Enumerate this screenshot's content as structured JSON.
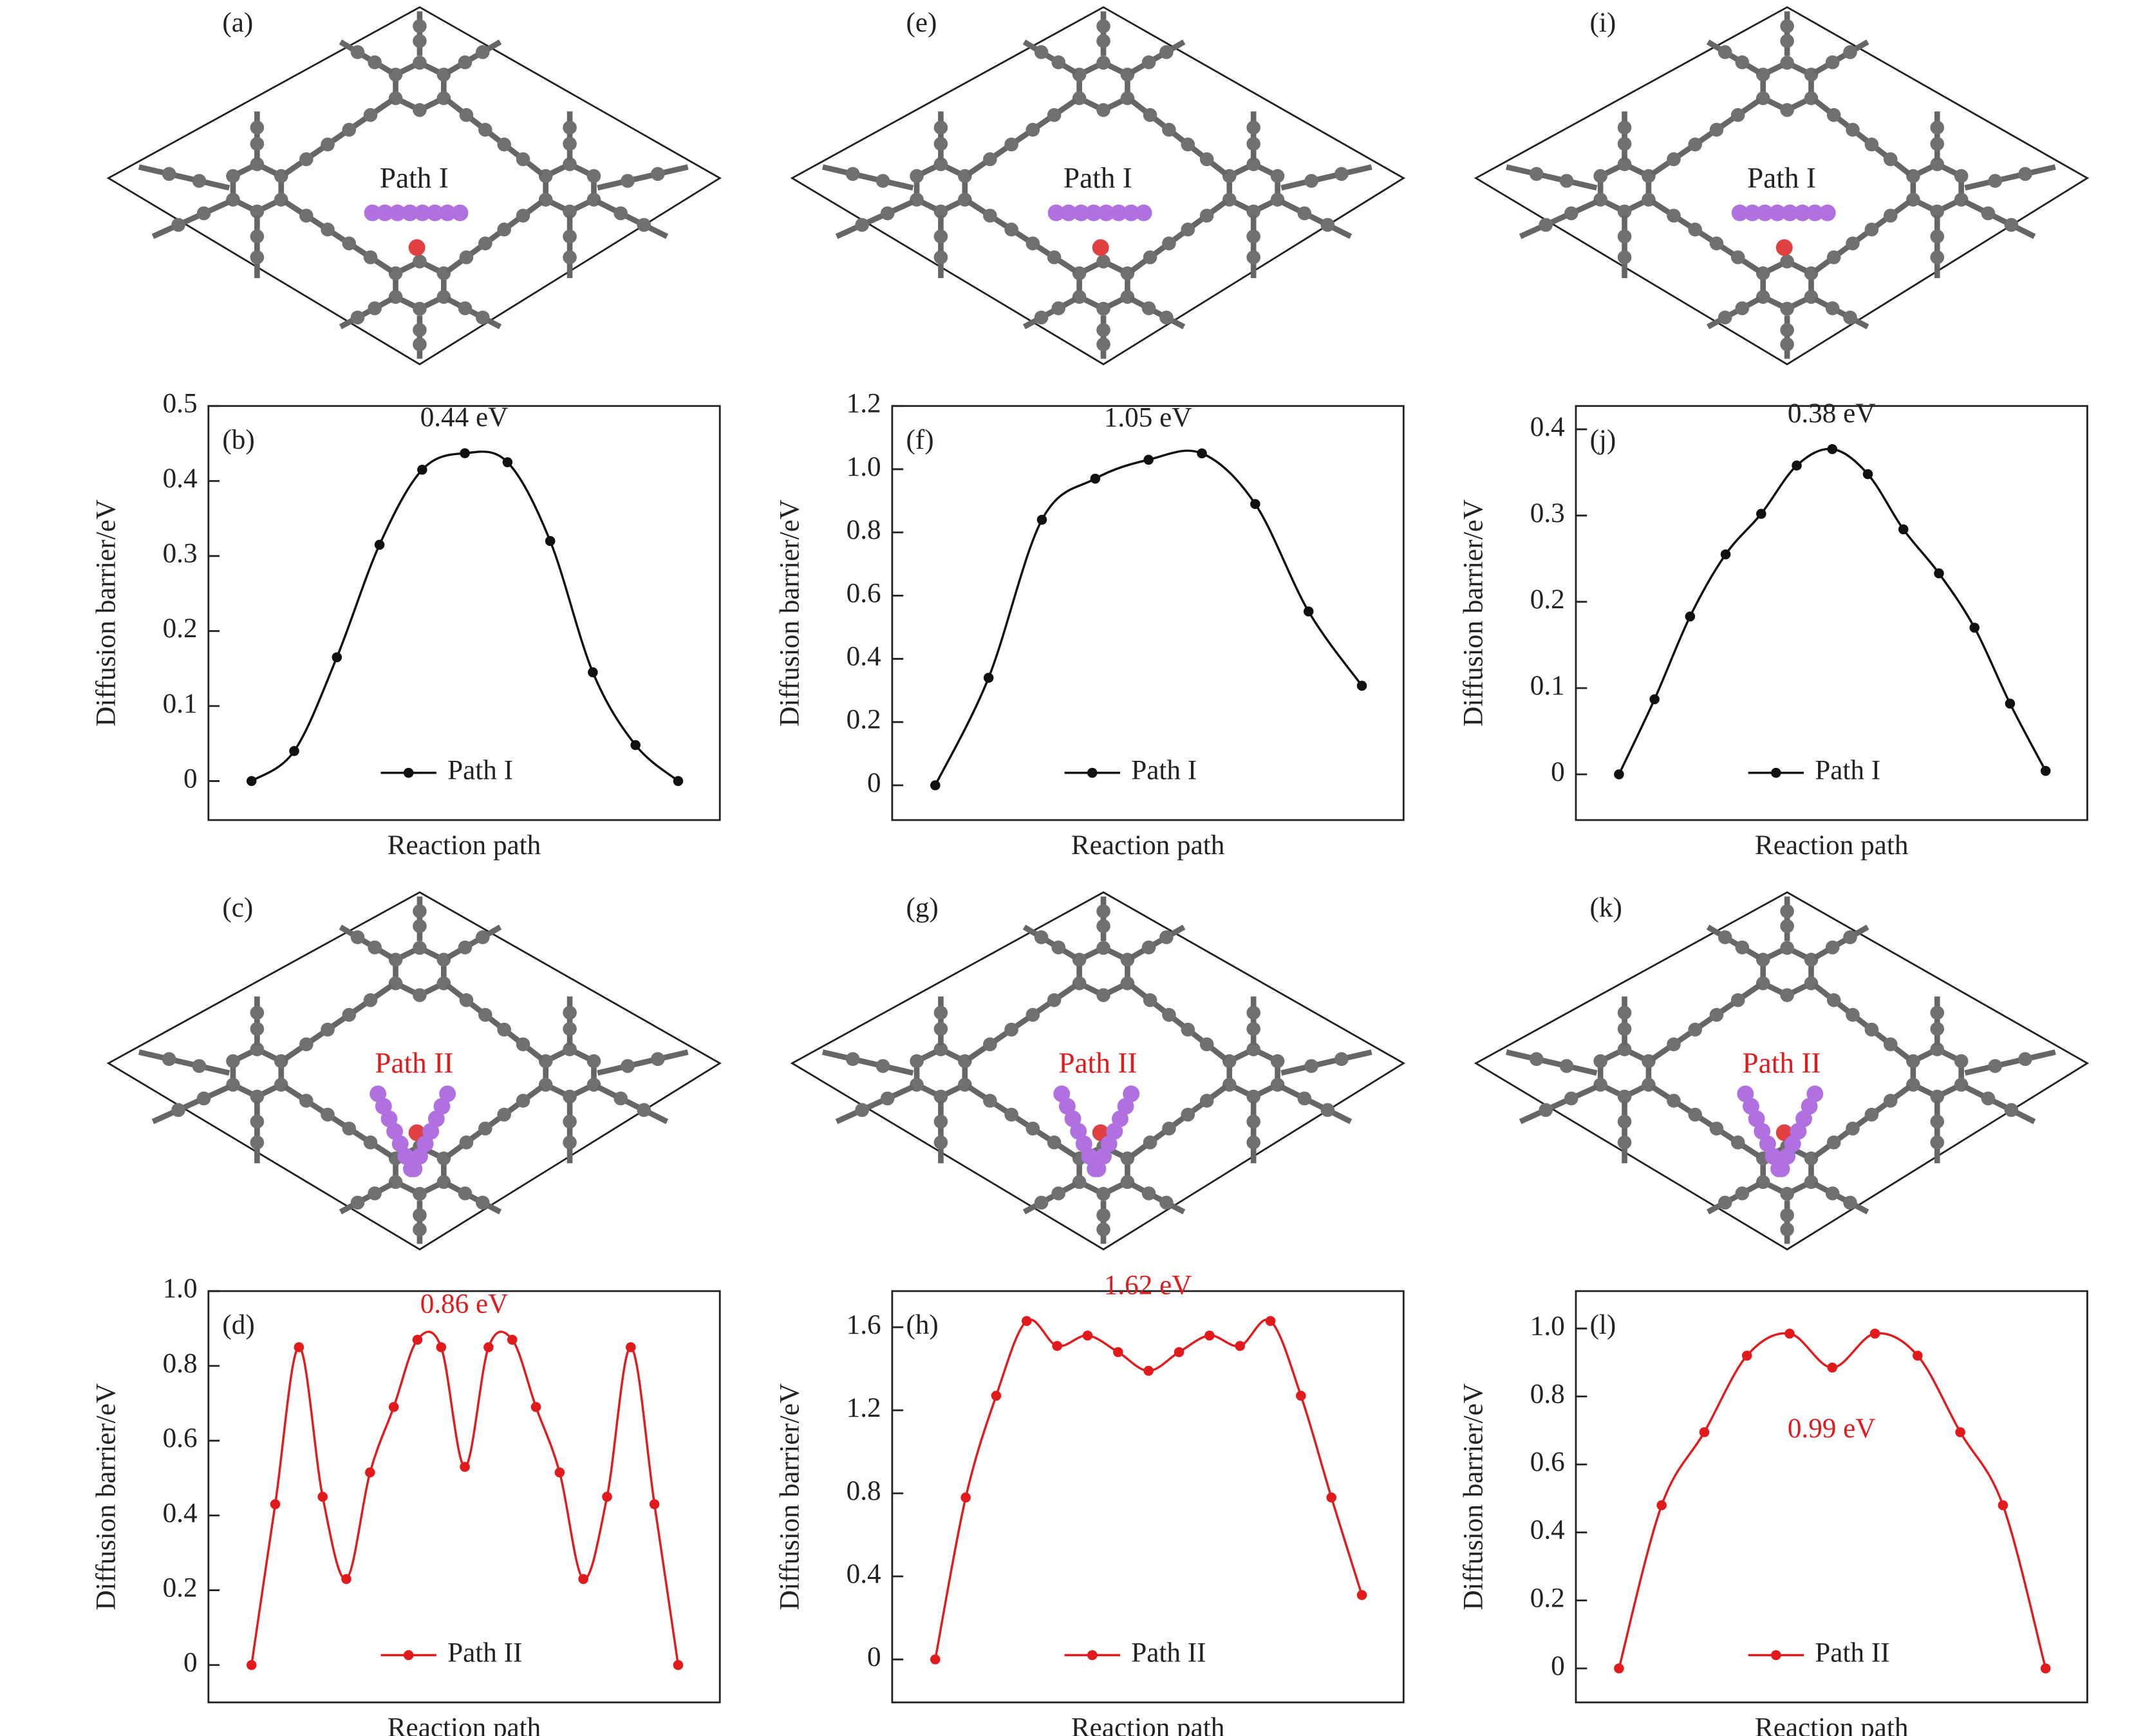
{
  "chart_data": [
    {
      "type": "line",
      "panel": "(b)",
      "ylabel": "Diffusion barrier/eV",
      "xlabel": "Reaction path",
      "annotation": "0.44 eV",
      "series": [
        {
          "name": "Path I",
          "color": "#111111",
          "values": [
            0,
            0.04,
            0.165,
            0.315,
            0.415,
            0.437,
            0.425,
            0.32,
            0.145,
            0.048,
            0
          ]
        }
      ],
      "ylim": [
        -0.052,
        0.5
      ],
      "yticks": [
        0,
        0.1,
        0.2,
        0.3,
        0.4,
        0.5
      ]
    },
    {
      "type": "line",
      "panel": "(d)",
      "ylabel": "Diffusion barrier/eV",
      "xlabel": "Reaction path",
      "annotation": "0.86 eV",
      "series": [
        {
          "name": "Path II",
          "color": "#e31a1c",
          "values": [
            0,
            0.43,
            0.85,
            0.45,
            0.23,
            0.515,
            0.69,
            0.87,
            0.85,
            0.53,
            0.85,
            0.87,
            0.69,
            0.515,
            0.23,
            0.45,
            0.85,
            0.43,
            0
          ]
        }
      ],
      "ylim": [
        -0.1,
        1.0
      ],
      "yticks": [
        0,
        0.2,
        0.4,
        0.6,
        0.8,
        {
          "value": 1,
          "label": "1.0"
        }
      ]
    },
    {
      "type": "line",
      "panel": "(f)",
      "ylabel": "Diffusion barrier/eV",
      "xlabel": "Reaction path",
      "annotation": "1.05 eV",
      "series": [
        {
          "name": "Path I",
          "color": "#111111",
          "values": [
            0,
            0.34,
            0.84,
            0.97,
            1.03,
            1.05,
            0.89,
            0.55,
            0.315
          ]
        }
      ],
      "ylim": [
        -0.11,
        1.2
      ],
      "yticks": [
        0,
        0.2,
        0.4,
        0.6,
        0.8,
        {
          "value": 1,
          "label": "1.0"
        },
        1.2
      ]
    },
    {
      "type": "line",
      "panel": "(h)",
      "ylabel": "Diffusion barrier/eV",
      "xlabel": "Reaction path",
      "annotation": "1.62 eV",
      "series": [
        {
          "name": "Path II",
          "color": "#e31a1c",
          "values": [
            0,
            0.78,
            1.27,
            1.63,
            1.51,
            1.56,
            1.48,
            1.39,
            1.48,
            1.56,
            1.51,
            1.63,
            1.27,
            0.78,
            0.31
          ]
        }
      ],
      "ylim": [
        -0.207,
        1.774
      ],
      "yticks": [
        0,
        0.4,
        0.8,
        1.2,
        1.6
      ]
    },
    {
      "type": "line",
      "panel": "(j)",
      "ylabel": "Diffusion barrier/eV",
      "xlabel": "Reaction path",
      "annotation": "0.38 eV",
      "series": [
        {
          "name": "Path I",
          "color": "#111111",
          "values": [
            0,
            0.087,
            0.183,
            0.255,
            0.302,
            0.358,
            0.377,
            0.348,
            0.284,
            0.233,
            0.17,
            0.082,
            0.004
          ]
        }
      ],
      "ylim": [
        -0.053,
        0.427
      ],
      "yticks": [
        0,
        0.1,
        0.2,
        0.3,
        0.4
      ]
    },
    {
      "type": "line",
      "panel": "(l)",
      "ylabel": "Diffusion barrier/eV",
      "xlabel": "Reaction path",
      "annotation": "0.99 eV",
      "series": [
        {
          "name": "Path II",
          "color": "#e31a1c",
          "values": [
            0,
            0.48,
            0.695,
            0.92,
            0.985,
            0.885,
            0.985,
            0.92,
            0.695,
            0.48,
            0
          ]
        }
      ],
      "ylim": [
        -0.1,
        1.11
      ],
      "yticks": [
        0,
        0.2,
        0.4,
        0.6,
        0.8,
        {
          "value": 1,
          "label": "1.0"
        }
      ]
    }
  ],
  "structures": [
    {
      "panel": "(a)",
      "label": "Path I"
    },
    {
      "panel": "(c)",
      "label": "Path II"
    },
    {
      "panel": "(e)",
      "label": "Path I"
    },
    {
      "panel": "(g)",
      "label": "Path II"
    },
    {
      "panel": "(i)",
      "label": "Path I"
    },
    {
      "panel": "(k)",
      "label": "Path II"
    }
  ]
}
